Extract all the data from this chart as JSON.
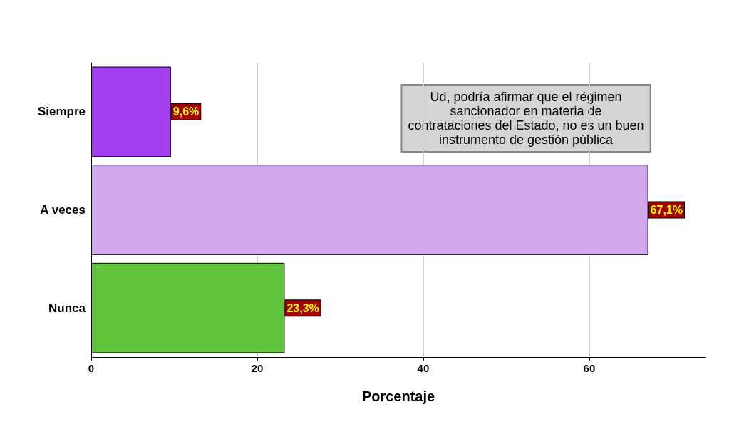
{
  "chart_data": {
    "type": "bar",
    "orientation": "horizontal",
    "categories": [
      "Siempre",
      "A veces",
      "Nunca"
    ],
    "values": [
      9.6,
      67.1,
      23.3
    ],
    "colors": [
      "#a540f0",
      "#d2a8ec",
      "#62c43c"
    ],
    "value_labels": [
      "9,6%",
      "67,1%",
      "23,3%"
    ],
    "xlabel": "Porcentaje",
    "xlim": [
      0,
      74
    ],
    "xticks": [
      0,
      20,
      40,
      60
    ],
    "grid": "x",
    "annotations": [
      "Ud, podría afirmar que el régimen\nsancionador en materia de\ncontrataciones del Estado, no es un buen\ninstrumento de gestión pública"
    ]
  }
}
